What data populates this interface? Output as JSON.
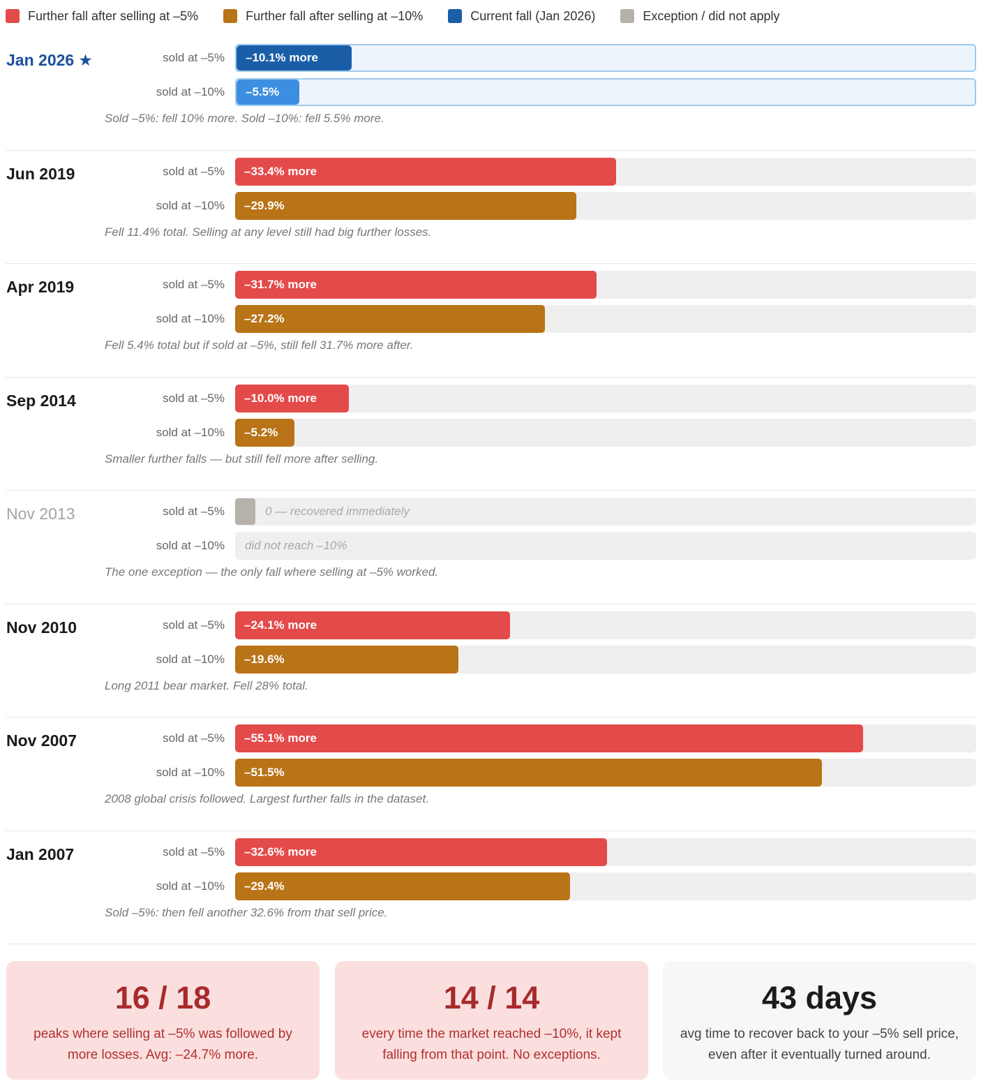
{
  "colors": {
    "sell5": "#e34a4a",
    "sell10": "#b97417",
    "current5": "#1a5ea8",
    "current10": "#3c8fe0",
    "exception": "#b6b2aa"
  },
  "legend": [
    {
      "label": "Further fall after selling at –5%",
      "color": "#e34a4a"
    },
    {
      "label": "Further fall after selling at –10%",
      "color": "#b97417"
    },
    {
      "label": "Current fall (Jan 2026)",
      "color": "#1a5ea8"
    },
    {
      "label": "Exception / did not apply",
      "color": "#b6b2aa"
    }
  ],
  "chart_data": {
    "type": "bar",
    "orientation": "horizontal",
    "xlim": [
      0,
      65
    ],
    "sold_label_5": "sold at –5%",
    "sold_label_10": "sold at –10%",
    "rows": [
      {
        "period": "Jan 2026",
        "marker": "★",
        "kind": "current",
        "sell5": {
          "value": 10.1,
          "label": "–10.1% more"
        },
        "sell10": {
          "value": 5.5,
          "label": "–5.5%"
        },
        "note": "Sold –5%: fell 10% more. Sold –10%: fell 5.5% more."
      },
      {
        "period": "Jun 2019",
        "kind": "normal",
        "sell5": {
          "value": 33.4,
          "label": "–33.4% more"
        },
        "sell10": {
          "value": 29.9,
          "label": "–29.9%"
        },
        "note": "Fell 11.4% total. Selling at any level still had big further losses."
      },
      {
        "period": "Apr 2019",
        "kind": "normal",
        "sell5": {
          "value": 31.7,
          "label": "–31.7% more"
        },
        "sell10": {
          "value": 27.2,
          "label": "–27.2%"
        },
        "note": "Fell 5.4% total but if sold at –5%, still fell 31.7% more after."
      },
      {
        "period": "Sep 2014",
        "kind": "normal",
        "sell5": {
          "value": 10.0,
          "label": "–10.0% more"
        },
        "sell10": {
          "value": 5.2,
          "label": "–5.2%"
        },
        "note": "Smaller further falls — but still fell more after selling."
      },
      {
        "period": "Nov 2013",
        "kind": "exception",
        "sell5": {
          "value": 0,
          "label": "0 — recovered immediately"
        },
        "sell10": {
          "value": null,
          "label": "did not reach –10%"
        },
        "note": "The one exception — the only fall where selling at –5% worked."
      },
      {
        "period": "Nov 2010",
        "kind": "normal",
        "sell5": {
          "value": 24.1,
          "label": "–24.1% more"
        },
        "sell10": {
          "value": 19.6,
          "label": "–19.6%"
        },
        "note": "Long 2011 bear market. Fell 28% total."
      },
      {
        "period": "Nov 2007",
        "kind": "normal",
        "sell5": {
          "value": 55.1,
          "label": "–55.1% more"
        },
        "sell10": {
          "value": 51.5,
          "label": "–51.5%"
        },
        "note": "2008 global crisis followed. Largest further falls in the dataset."
      },
      {
        "period": "Jan 2007",
        "kind": "normal",
        "sell5": {
          "value": 32.6,
          "label": "–32.6% more"
        },
        "sell10": {
          "value": 29.4,
          "label": "–29.4%"
        },
        "note": "Sold –5%: then fell another 32.6% from that sell price."
      }
    ]
  },
  "summary": [
    {
      "value": "16 / 18",
      "text": "peaks where selling at –5% was followed by more losses. Avg: –24.7% more."
    },
    {
      "value": "14 / 14",
      "text": "every time the market reached –10%, it kept falling from that point. No exceptions."
    },
    {
      "value": "43 days",
      "text": "avg time to recover back to your –5% sell price, even after it eventually turned around."
    }
  ]
}
